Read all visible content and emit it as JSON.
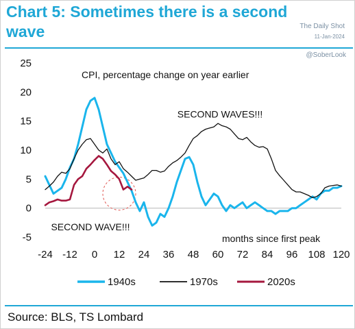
{
  "header": {
    "title": "Chart 5: Sometimes there is a second wave",
    "brand": "The Daily Shot",
    "date": "11-Jan-2024",
    "credit": "@SoberLook"
  },
  "footer": {
    "source": "Source: BLS, TS Lombard"
  },
  "chart_data": {
    "type": "line",
    "title": "CPI, percentage change on year earlier",
    "xlabel": "months since first peak",
    "ylabel": "",
    "xlim": [
      -24,
      120
    ],
    "ylim": [
      -5,
      25
    ],
    "x_ticks": [
      "-24",
      "-12",
      "0",
      "12",
      "24",
      "36",
      "48",
      "60",
      "72",
      "84",
      "96",
      "108",
      "120"
    ],
    "y_ticks": [
      "25",
      "20",
      "15",
      "10",
      "5",
      "0",
      "-5"
    ],
    "grid": false,
    "legend_position": "bottom",
    "annotations": [
      {
        "text": "SECOND WAVES!!!",
        "x": 61,
        "y": 15.6
      },
      {
        "text": "SECOND WAVE!!!",
        "x": -2,
        "y": -3.8
      }
    ],
    "highlight_circle": {
      "x": 12,
      "y": 2.5
    },
    "series": [
      {
        "name": "1940s",
        "color": "#1ab5ec",
        "x": [
          -24,
          -22,
          -20,
          -18,
          -16,
          -14,
          -12,
          -10,
          -8,
          -6,
          -4,
          -2,
          0,
          2,
          4,
          6,
          8,
          10,
          12,
          14,
          16,
          18,
          20,
          22,
          24,
          26,
          28,
          30,
          32,
          34,
          36,
          38,
          40,
          42,
          44,
          46,
          48,
          50,
          52,
          54,
          56,
          58,
          60,
          62,
          64,
          66,
          68,
          70,
          72,
          74,
          76,
          78,
          80,
          82,
          84,
          86,
          88,
          90,
          92,
          94,
          96,
          98,
          100,
          102,
          104,
          106,
          108,
          110,
          112,
          114,
          116,
          118,
          120
        ],
        "values": [
          5.5,
          4.0,
          2.5,
          3.0,
          3.5,
          5.0,
          7.0,
          8.5,
          11.0,
          14.0,
          17.0,
          18.5,
          19.0,
          17.0,
          14.0,
          11.0,
          9.5,
          8.0,
          7.0,
          6.0,
          4.5,
          3.0,
          1.0,
          -0.5,
          1.0,
          -1.5,
          -3.0,
          -2.5,
          -1.0,
          -1.5,
          0.0,
          2.0,
          4.5,
          6.5,
          8.5,
          8.8,
          7.5,
          4.5,
          2.0,
          0.5,
          1.5,
          2.5,
          2.0,
          0.5,
          -0.5,
          0.5,
          0.0,
          0.5,
          1.0,
          0.0,
          0.5,
          1.0,
          0.5,
          0.0,
          -0.5,
          -0.5,
          -1.0,
          -0.5,
          -0.5,
          -0.5,
          0.0,
          0.0,
          0.5,
          1.0,
          1.5,
          2.0,
          1.5,
          2.5,
          3.0,
          3.0,
          3.5,
          3.5,
          3.8
        ]
      },
      {
        "name": "1970s",
        "color": "#111111",
        "x": [
          -24,
          -22,
          -20,
          -18,
          -16,
          -14,
          -12,
          -10,
          -8,
          -6,
          -4,
          -2,
          0,
          2,
          4,
          6,
          8,
          10,
          12,
          14,
          16,
          18,
          20,
          22,
          24,
          26,
          28,
          30,
          32,
          34,
          36,
          38,
          40,
          42,
          44,
          46,
          48,
          50,
          52,
          54,
          56,
          58,
          60,
          62,
          64,
          66,
          68,
          70,
          72,
          74,
          76,
          78,
          80,
          82,
          84,
          86,
          88,
          90,
          92,
          94,
          96,
          98,
          100,
          102,
          104,
          106,
          108,
          110,
          112,
          114,
          116,
          118,
          120
        ],
        "values": [
          3.2,
          3.8,
          4.5,
          5.5,
          6.2,
          6.0,
          6.8,
          8.5,
          10.0,
          11.0,
          11.8,
          12.0,
          11.0,
          10.0,
          9.5,
          10.2,
          8.5,
          7.5,
          8.0,
          6.8,
          6.2,
          5.5,
          4.8,
          5.0,
          5.2,
          5.8,
          6.5,
          6.5,
          6.2,
          6.4,
          7.2,
          7.8,
          8.2,
          8.8,
          9.5,
          10.8,
          12.0,
          12.5,
          13.2,
          13.6,
          13.8,
          14.0,
          14.6,
          14.2,
          14.0,
          13.6,
          12.8,
          12.0,
          11.8,
          12.2,
          11.4,
          10.8,
          10.5,
          10.6,
          10.2,
          8.5,
          6.5,
          5.6,
          4.8,
          4.0,
          3.2,
          2.8,
          2.8,
          2.5,
          2.2,
          1.8,
          2.0,
          2.5,
          3.5,
          3.8,
          3.9,
          4.0,
          3.8
        ]
      },
      {
        "name": "2020s",
        "color": "#a5173e",
        "x": [
          -24,
          -22,
          -20,
          -18,
          -16,
          -14,
          -12,
          -10,
          -8,
          -6,
          -4,
          -2,
          0,
          2,
          4,
          6,
          8,
          10,
          12,
          14,
          16,
          18
        ],
        "values": [
          0.5,
          1.0,
          1.2,
          1.5,
          1.3,
          1.3,
          1.5,
          4.0,
          5.0,
          5.5,
          6.8,
          7.5,
          8.3,
          9.0,
          8.5,
          7.5,
          6.4,
          5.8,
          5.0,
          3.2,
          3.7,
          3.2
        ]
      }
    ]
  }
}
